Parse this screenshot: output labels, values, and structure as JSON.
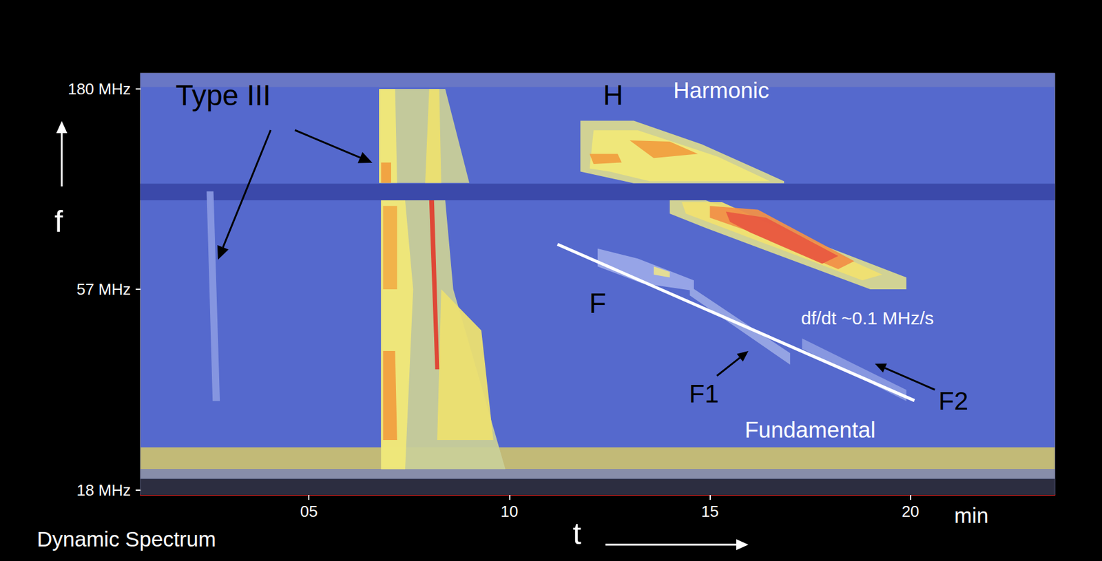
{
  "chart_data": {
    "type": "spectrogram",
    "title": "Dynamic Spectrum",
    "x_label": "t",
    "y_label": "f",
    "log": "y",
    "grid": false,
    "color": "#5569cd",
    "xlim": [
      0.8,
      23.6
    ],
    "xticks": [
      {
        "value": 5,
        "label": "05"
      },
      10,
      15,
      20
    ],
    "ylim": [
      17.5,
      197
    ],
    "yticks": [
      {
        "value": 18,
        "label": "18 MHz"
      },
      {
        "value": 57,
        "label": "57 MHz"
      },
      {
        "value": 180,
        "label": "180 MHz"
      }
    ],
    "features": [
      {
        "color": "#3a48a8",
        "points": [
          [
            0.8,
            95
          ],
          [
            23.6,
            95
          ],
          [
            23.6,
            104.5
          ],
          [
            0.8,
            104.5
          ]
        ]
      },
      {
        "color": "#6a78c4",
        "points": [
          [
            0.8,
            182
          ],
          [
            23.6,
            182
          ],
          [
            23.6,
            197
          ],
          [
            0.8,
            197
          ]
        ]
      },
      {
        "color": "#c8bf72",
        "points": [
          [
            0.8,
            20.3
          ],
          [
            23.6,
            20.3
          ],
          [
            23.6,
            23
          ],
          [
            0.8,
            23
          ]
        ]
      },
      {
        "color": "#8a8fa8",
        "points": [
          [
            0.8,
            19.2
          ],
          [
            23.6,
            19.2
          ],
          [
            23.6,
            20.3
          ],
          [
            0.8,
            20.3
          ]
        ]
      },
      {
        "color": "#2a2a38",
        "points": [
          [
            0.8,
            17.5
          ],
          [
            23.6,
            17.5
          ],
          [
            23.6,
            19.2
          ],
          [
            0.8,
            19.2
          ]
        ]
      },
      {
        "color": "#8898e0",
        "points": [
          [
            2.45,
            100
          ],
          [
            2.62,
            100
          ],
          [
            2.78,
            30
          ],
          [
            2.6,
            30
          ]
        ]
      },
      {
        "color": "#c9cf98",
        "points": [
          [
            6.75,
            105
          ],
          [
            6.75,
            180
          ],
          [
            8.4,
            180
          ],
          [
            9.0,
            105
          ]
        ]
      },
      {
        "color": "#f0e878",
        "points": [
          [
            6.75,
            105
          ],
          [
            6.75,
            180
          ],
          [
            7.15,
            180
          ],
          [
            7.2,
            105
          ]
        ]
      },
      {
        "color": "#ece070",
        "points": [
          [
            7.9,
            105
          ],
          [
            8.0,
            180
          ],
          [
            8.25,
            180
          ],
          [
            8.3,
            105
          ]
        ]
      },
      {
        "color": "#f0a040",
        "points": [
          [
            6.8,
            105
          ],
          [
            6.8,
            118
          ],
          [
            7.05,
            118
          ],
          [
            7.05,
            105
          ]
        ]
      },
      {
        "color": "#c9cf98",
        "points": [
          [
            6.8,
            20.3
          ],
          [
            6.8,
            95
          ],
          [
            8.4,
            95
          ],
          [
            8.6,
            57
          ],
          [
            9.9,
            20.3
          ]
        ]
      },
      {
        "color": "#f0e878",
        "points": [
          [
            6.8,
            20.3
          ],
          [
            6.8,
            95
          ],
          [
            7.4,
            95
          ],
          [
            7.6,
            57
          ],
          [
            7.4,
            20.3
          ]
        ]
      },
      {
        "color": "#f0a040",
        "points": [
          [
            6.85,
            24
          ],
          [
            6.85,
            40
          ],
          [
            7.15,
            40
          ],
          [
            7.2,
            24
          ]
        ]
      },
      {
        "color": "#f0b048",
        "points": [
          [
            6.85,
            57
          ],
          [
            6.85,
            92
          ],
          [
            7.2,
            92
          ],
          [
            7.2,
            57
          ]
        ]
      },
      {
        "color": "#ece070",
        "points": [
          [
            8.2,
            24
          ],
          [
            8.3,
            57
          ],
          [
            9.3,
            45
          ],
          [
            9.6,
            24
          ]
        ]
      },
      {
        "color": "#e04030",
        "points": [
          [
            8.0,
            95
          ],
          [
            8.12,
            95
          ],
          [
            8.25,
            36
          ],
          [
            8.15,
            36
          ]
        ]
      },
      {
        "color": "#d8d890",
        "points": [
          [
            11.77,
            112
          ],
          [
            11.77,
            150
          ],
          [
            13.1,
            150
          ],
          [
            14.8,
            131
          ],
          [
            16.85,
            106
          ],
          [
            16.85,
            104.8
          ],
          [
            13.1,
            104.8
          ]
        ]
      },
      {
        "color": "#f0e878",
        "points": [
          [
            12.0,
            114
          ],
          [
            12.1,
            142
          ],
          [
            13.2,
            142
          ],
          [
            15.2,
            122
          ],
          [
            16.5,
            106
          ],
          [
            13.5,
            106
          ],
          [
            12.5,
            112
          ]
        ]
      },
      {
        "color": "#f0a040",
        "points": [
          [
            13.0,
            134
          ],
          [
            14.0,
            133
          ],
          [
            14.7,
            124
          ],
          [
            13.6,
            121
          ]
        ]
      },
      {
        "color": "#f0a040",
        "points": [
          [
            12.0,
            124
          ],
          [
            12.7,
            124
          ],
          [
            12.8,
            118
          ],
          [
            12.1,
            117
          ]
        ]
      },
      {
        "color": "#d8d890",
        "points": [
          [
            14.0,
            95
          ],
          [
            14.9,
            95
          ],
          [
            19.9,
            61
          ],
          [
            19.9,
            57
          ],
          [
            19.0,
            57
          ],
          [
            14.9,
            81
          ],
          [
            14.0,
            88
          ]
        ]
      },
      {
        "color": "#f0e070",
        "points": [
          [
            14.3,
            94
          ],
          [
            15.3,
            94
          ],
          [
            19.3,
            62
          ],
          [
            18.8,
            60
          ],
          [
            15.5,
            80
          ],
          [
            14.4,
            88
          ]
        ]
      },
      {
        "color": "#f09048",
        "points": [
          [
            15.0,
            92
          ],
          [
            16.2,
            90
          ],
          [
            18.6,
            67
          ],
          [
            18.2,
            64
          ],
          [
            15.9,
            80
          ],
          [
            15.0,
            86
          ]
        ]
      },
      {
        "color": "#e85a40",
        "points": [
          [
            15.4,
            89
          ],
          [
            16.4,
            86
          ],
          [
            18.2,
            69
          ],
          [
            17.8,
            66
          ],
          [
            16.0,
            79
          ],
          [
            15.5,
            84
          ]
        ]
      },
      {
        "color": "#9aa8e8",
        "points": [
          [
            12.2,
            72
          ],
          [
            13.2,
            68
          ],
          [
            14.6,
            60
          ],
          [
            14.6,
            56.5
          ],
          [
            13.3,
            59
          ],
          [
            12.2,
            65
          ]
        ]
      },
      {
        "color": "#e8e090",
        "points": [
          [
            13.6,
            65
          ],
          [
            14.0,
            63
          ],
          [
            14.0,
            61
          ],
          [
            13.6,
            62
          ]
        ]
      },
      {
        "color": "#98a6e4",
        "points": [
          [
            14.5,
            58
          ],
          [
            17.0,
            39.5
          ],
          [
            17.0,
            37
          ],
          [
            14.5,
            55
          ]
        ]
      },
      {
        "color": "#8a9ae0",
        "points": [
          [
            17.3,
            43
          ],
          [
            19.9,
            32
          ],
          [
            19.9,
            30
          ],
          [
            17.3,
            40.5
          ]
        ]
      }
    ],
    "fit_line": {
      "color": "#ffffff",
      "points": [
        [
          11.2,
          73.8
        ],
        [
          20.1,
          30.1
        ]
      ]
    },
    "annotations": [
      "Type III",
      "H",
      "Harmonic",
      "F",
      "F1",
      "F2",
      "Fundamental",
      "df/dt ~0.1 MHz/s",
      "min"
    ]
  }
}
